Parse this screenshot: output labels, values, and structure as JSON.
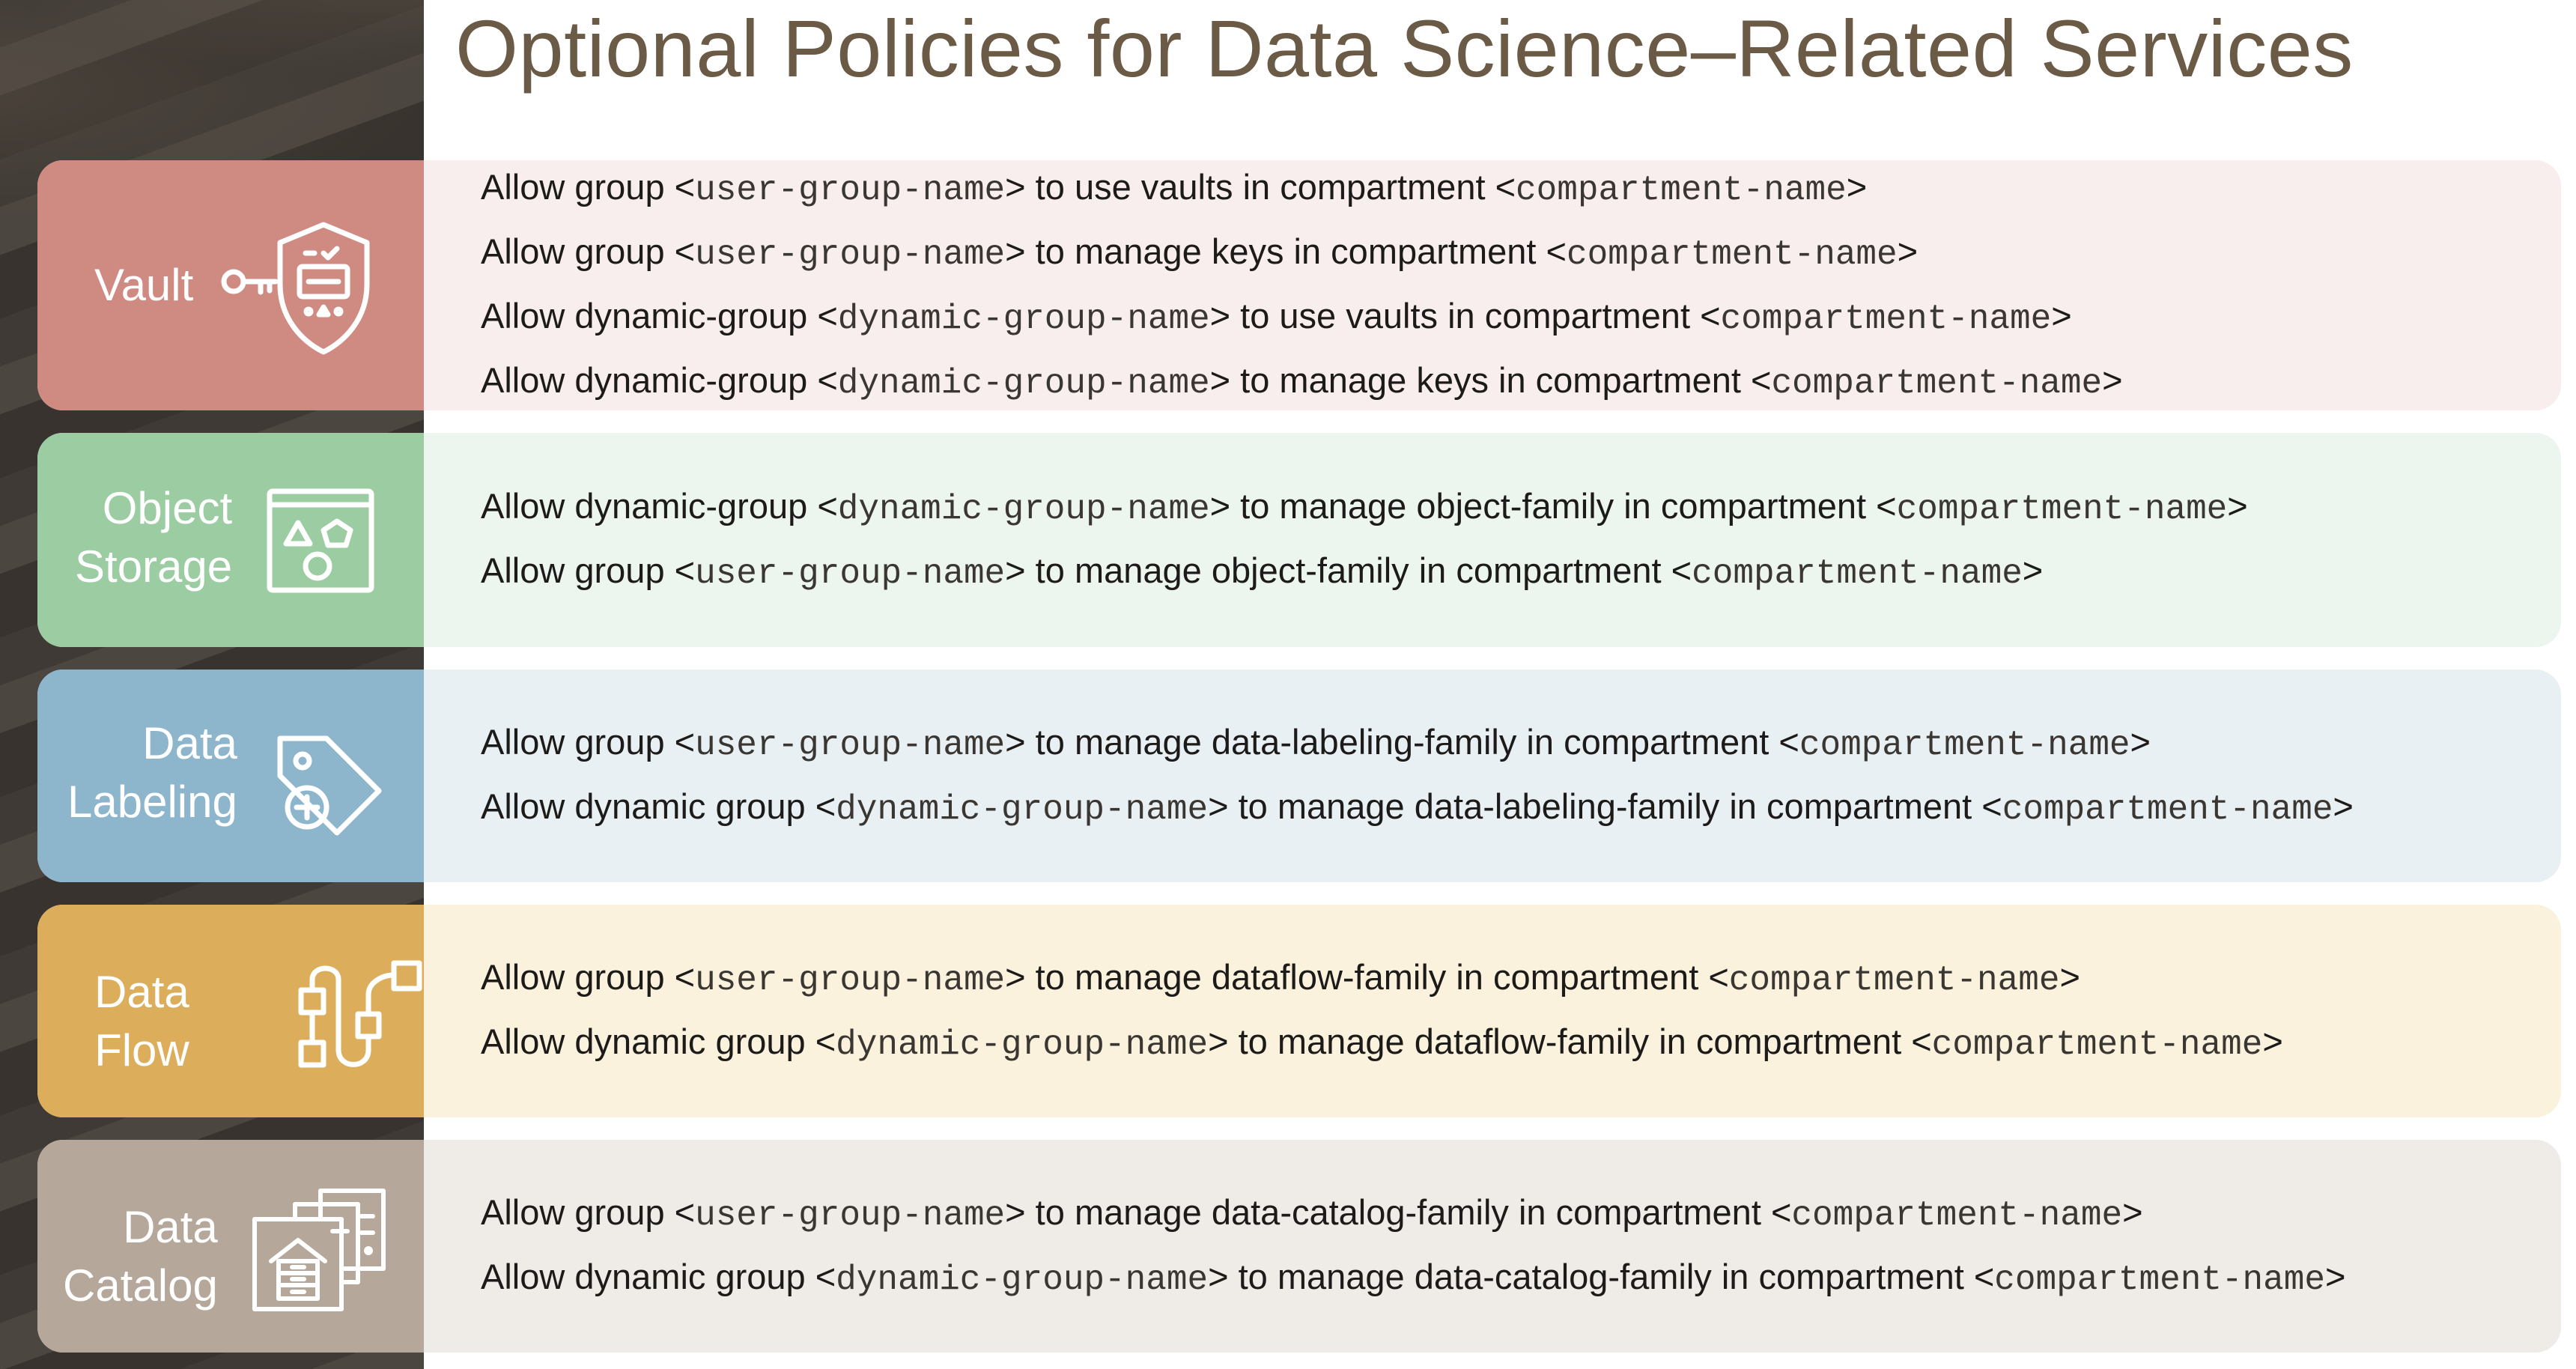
{
  "title": "Optional Policies for Data Science–Related Services",
  "sections": [
    {
      "label": "Vault",
      "icon": "vault-shield-key-icon",
      "tile_color": "#cf8a82",
      "row_color": "#f9eeee",
      "policies": [
        [
          "Allow group ",
          "<",
          "user-group-name",
          ">",
          " to use vaults in compartment ",
          "<",
          "compartment-name",
          ">"
        ],
        [
          "Allow group ",
          "<",
          "user-group-name",
          ">",
          " to manage keys in compartment ",
          "<",
          "compartment-name",
          ">"
        ],
        [
          "Allow dynamic-group ",
          "<",
          "dynamic-group-name",
          ">",
          " to use vaults in compartment ",
          "<",
          "compartment-name",
          ">"
        ],
        [
          "Allow dynamic-group ",
          "<",
          "dynamic-group-name",
          ">",
          " to manage keys in compartment ",
          "<",
          "compartment-name",
          ">"
        ]
      ]
    },
    {
      "label": "Object\nStorage",
      "icon": "object-storage-shapes-icon",
      "tile_color": "#9ccca2",
      "row_color": "#edf5ef",
      "policies": [
        [
          "Allow dynamic-group ",
          "<",
          "dynamic-group-name",
          ">",
          " to manage object-family in compartment ",
          "<",
          "compartment-name",
          ">"
        ],
        [
          "Allow group ",
          "<",
          "user-group-name",
          ">",
          " to manage object-family in compartment ",
          "<",
          "compartment-name",
          ">"
        ]
      ]
    },
    {
      "label": "Data\nLabeling",
      "icon": "data-labeling-tag-icon",
      "tile_color": "#8db6cd",
      "row_color": "#e9f0f4",
      "policies": [
        [
          "Allow group ",
          "<",
          "user-group-name",
          ">",
          " to manage data-labeling-family in compartment ",
          "<",
          "compartment-name",
          ">"
        ],
        [
          "Allow dynamic group ",
          "<",
          "dynamic-group-name",
          ">",
          " to manage data-labeling-family in compartment ",
          "<",
          "compartment-name",
          ">"
        ]
      ]
    },
    {
      "label": "Data\nFlow",
      "icon": "data-flow-connector-icon",
      "tile_color": "#dcae5c",
      "row_color": "#faf2dd",
      "policies": [
        [
          "Allow group ",
          "<",
          "user-group-name",
          ">",
          " to manage dataflow-family in compartment ",
          "<",
          "compartment-name",
          ">"
        ],
        [
          "Allow dynamic group ",
          "<",
          "dynamic-group-name",
          ">",
          " to manage dataflow-family in compartment ",
          "<",
          "compartment-name",
          ">"
        ]
      ]
    },
    {
      "label": "Data\nCatalog",
      "icon": "data-catalog-building-icon",
      "tile_color": "#b5a79a",
      "row_color": "#efebe6",
      "policies": [
        [
          "Allow group ",
          "<",
          "user-group-name",
          ">",
          " to manage data-catalog-family in compartment ",
          "<",
          "compartment-name",
          ">"
        ],
        [
          "Allow dynamic group ",
          "<",
          "dynamic-group-name",
          ">",
          " to manage data-catalog-family in compartment ",
          "<",
          "compartment-name",
          ">"
        ]
      ]
    }
  ]
}
